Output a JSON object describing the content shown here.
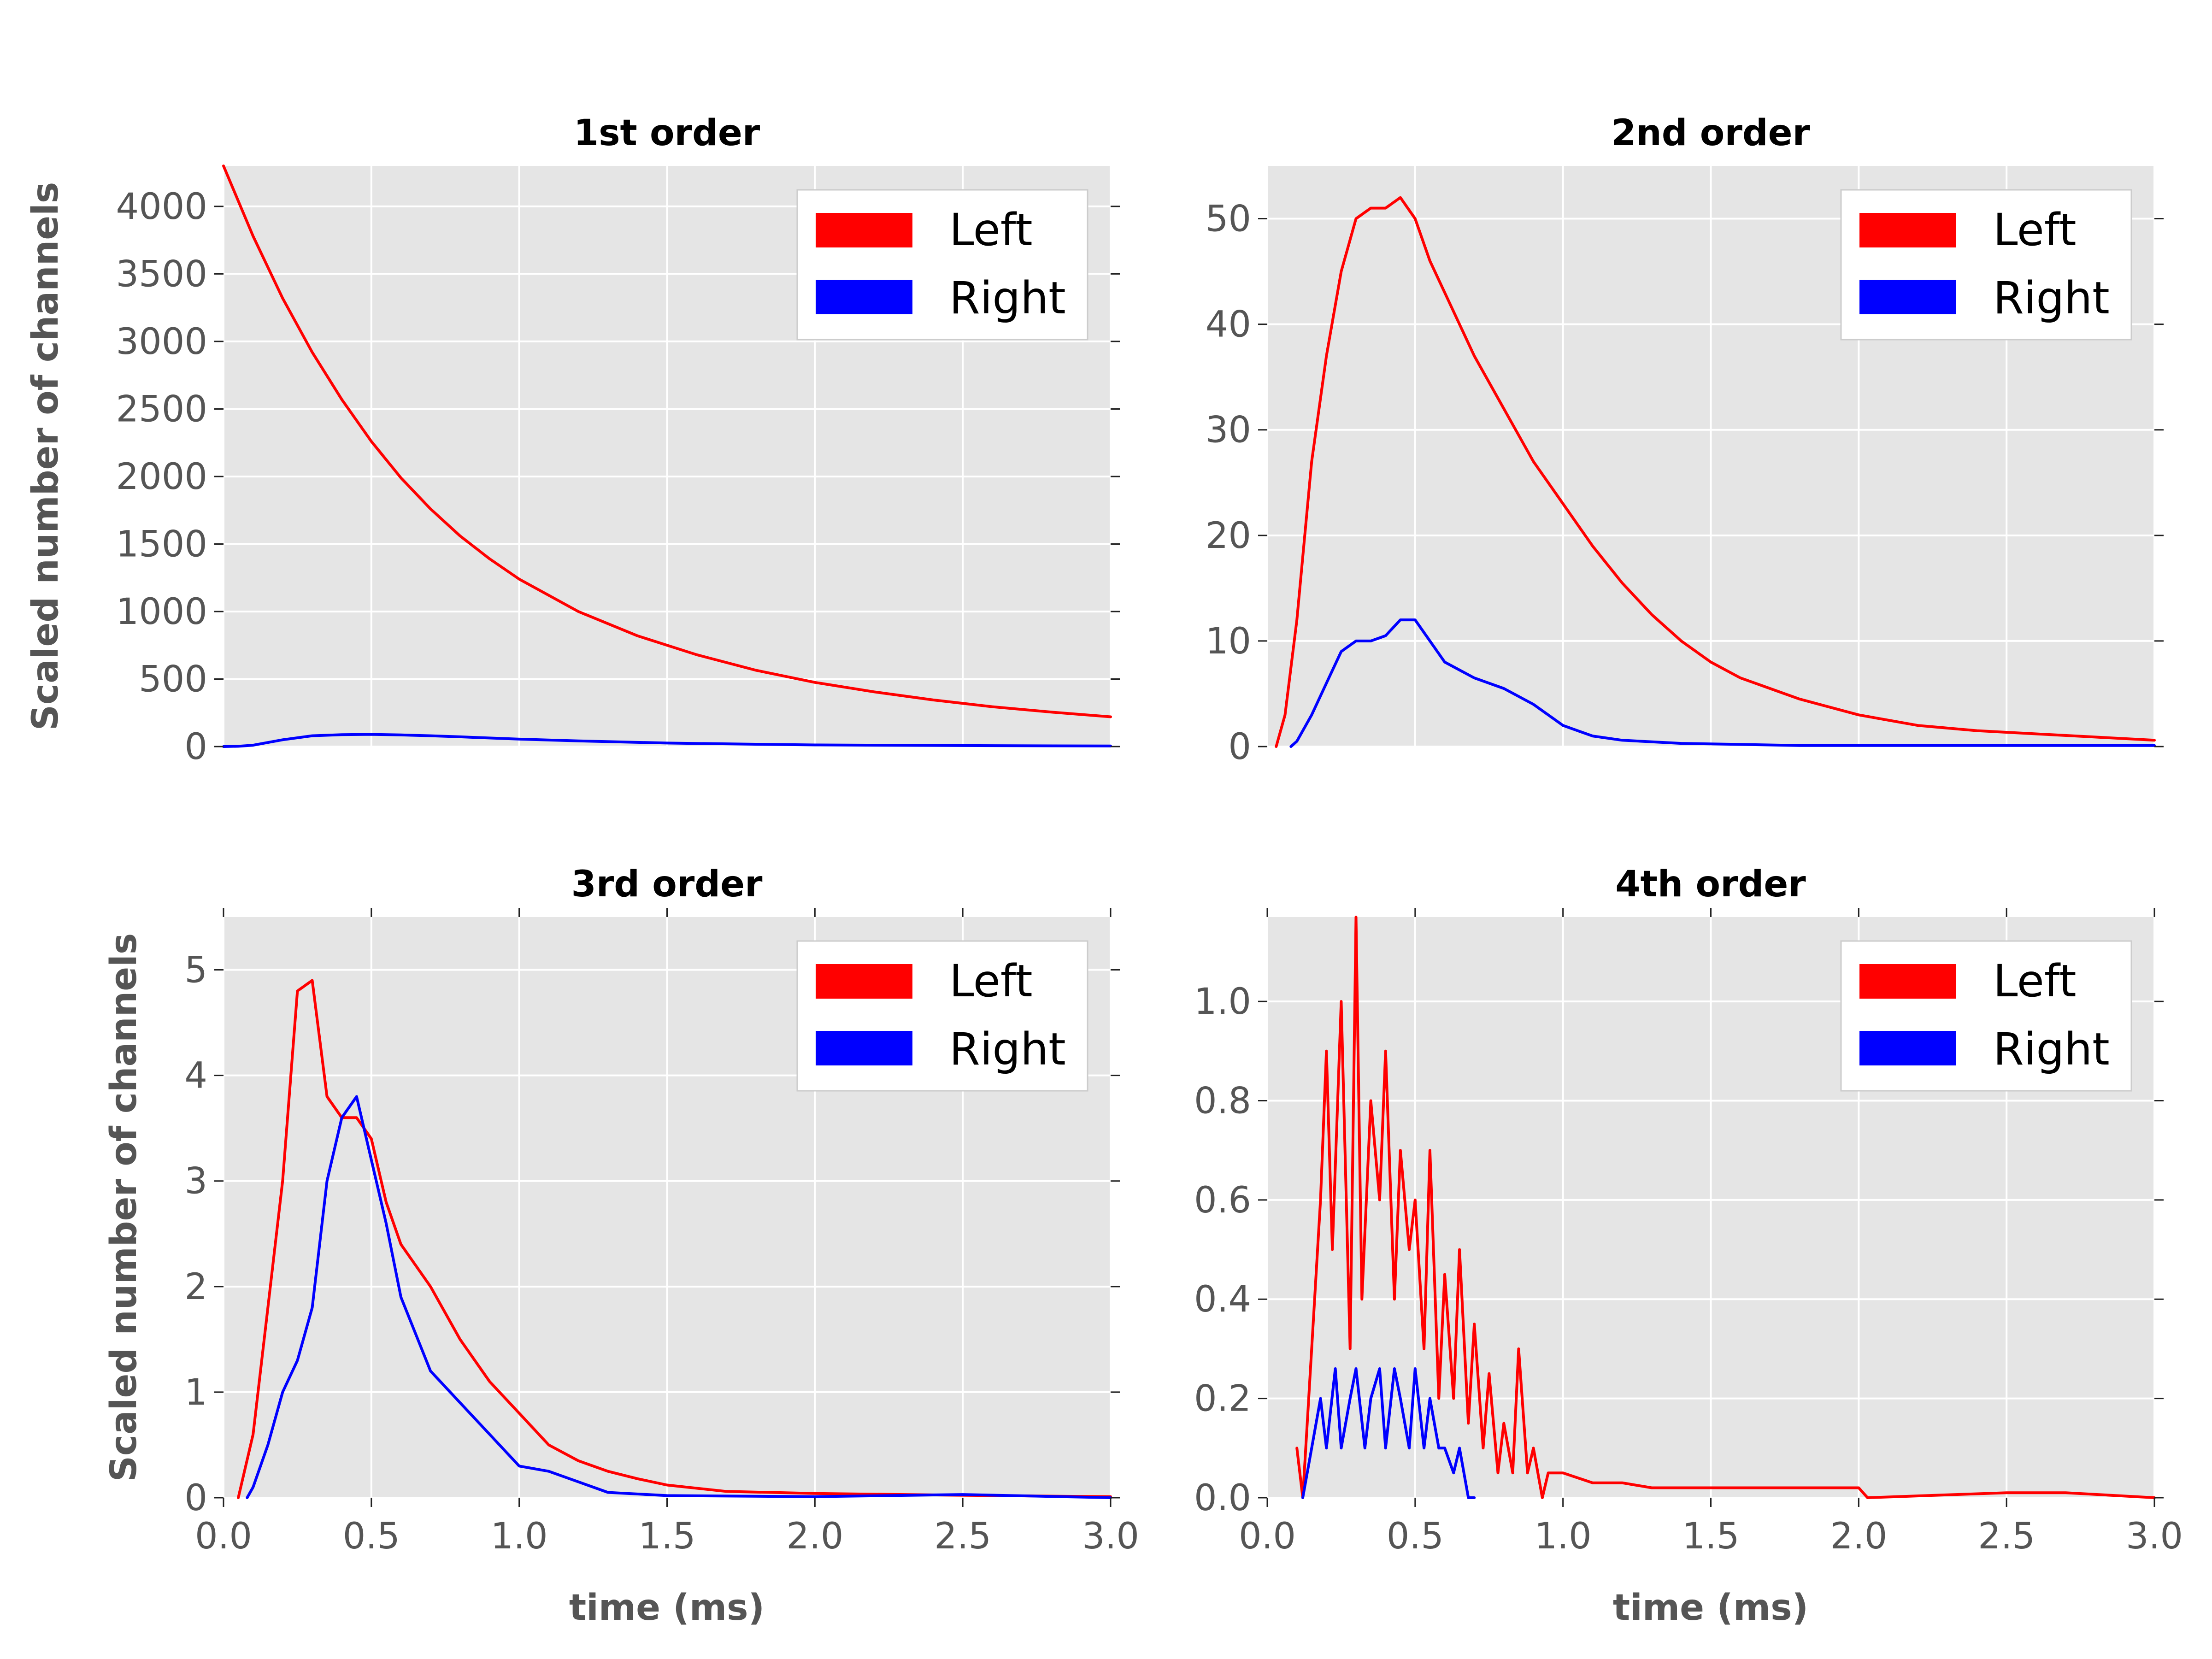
{
  "colors": {
    "left": "#ff0000",
    "right": "#0000ff",
    "plot_bg": "#e5e5e5",
    "grid": "#ffffff",
    "tick_text": "#555555"
  },
  "labels": {
    "ylabel": "Scaled number of channels",
    "xlabel": "time (ms)"
  },
  "chart_data": [
    {
      "type": "line",
      "title": "1st order",
      "xlim": [
        0.0,
        3.0
      ],
      "ylim": [
        0,
        4300
      ],
      "yticks": [
        "0",
        "500",
        "1000",
        "1500",
        "2000",
        "2500",
        "3000",
        "3500",
        "4000"
      ],
      "xticks": [],
      "ylabel": "Scaled number of channels",
      "xlabel": "",
      "legend": {
        "position": "top-right",
        "entries": [
          "Left",
          "Right"
        ]
      },
      "series": [
        {
          "name": "Left",
          "color": "#ff0000",
          "x": [
            0.0,
            0.1,
            0.2,
            0.3,
            0.4,
            0.5,
            0.6,
            0.7,
            0.8,
            0.9,
            1.0,
            1.2,
            1.4,
            1.6,
            1.8,
            2.0,
            2.2,
            2.4,
            2.6,
            2.8,
            3.0
          ],
          "y": [
            4300,
            3780,
            3320,
            2920,
            2570,
            2260,
            1990,
            1760,
            1560,
            1390,
            1240,
            1000,
            820,
            680,
            565,
            475,
            405,
            345,
            295,
            255,
            220
          ]
        },
        {
          "name": "Right",
          "color": "#0000ff",
          "x": [
            0.0,
            0.05,
            0.1,
            0.2,
            0.3,
            0.4,
            0.5,
            0.6,
            0.7,
            0.8,
            1.0,
            1.2,
            1.5,
            1.8,
            2.0,
            2.5,
            3.0
          ],
          "y": [
            0,
            2,
            10,
            50,
            80,
            88,
            90,
            86,
            80,
            72,
            55,
            42,
            26,
            17,
            12,
            7,
            4
          ]
        }
      ]
    },
    {
      "type": "line",
      "title": "2nd order",
      "xlim": [
        0.0,
        3.0
      ],
      "ylim": [
        0,
        55
      ],
      "yticks": [
        "0",
        "10",
        "20",
        "30",
        "40",
        "50"
      ],
      "xticks": [],
      "ylabel": "",
      "xlabel": "",
      "legend": {
        "position": "top-right",
        "entries": [
          "Left",
          "Right"
        ]
      },
      "series": [
        {
          "name": "Left",
          "color": "#ff0000",
          "x": [
            0.03,
            0.06,
            0.1,
            0.15,
            0.2,
            0.25,
            0.3,
            0.35,
            0.4,
            0.45,
            0.5,
            0.55,
            0.6,
            0.65,
            0.7,
            0.8,
            0.9,
            1.0,
            1.1,
            1.2,
            1.3,
            1.4,
            1.5,
            1.6,
            1.7,
            1.8,
            2.0,
            2.2,
            2.4,
            2.6,
            2.8,
            3.0
          ],
          "y": [
            0,
            3,
            12,
            27,
            37,
            45,
            50,
            51,
            51,
            52,
            50,
            46,
            43,
            40,
            37,
            32,
            27,
            23,
            19,
            15.5,
            12.5,
            10,
            8,
            6.5,
            5.5,
            4.5,
            3,
            2,
            1.5,
            1.2,
            0.9,
            0.6
          ]
        },
        {
          "name": "Right",
          "color": "#0000ff",
          "x": [
            0.08,
            0.1,
            0.15,
            0.2,
            0.25,
            0.3,
            0.35,
            0.4,
            0.45,
            0.5,
            0.55,
            0.6,
            0.7,
            0.8,
            0.9,
            1.0,
            1.1,
            1.2,
            1.4,
            1.6,
            1.8,
            2.0,
            2.2,
            2.4,
            2.6,
            2.8,
            3.0
          ],
          "y": [
            0,
            0.5,
            3,
            6,
            9,
            10,
            10,
            10.5,
            12,
            12,
            10,
            8,
            6.5,
            5.5,
            4,
            2,
            1,
            0.6,
            0.3,
            0.2,
            0.1,
            0.1,
            0.1,
            0.1,
            0.1,
            0.1,
            0.1
          ]
        }
      ]
    },
    {
      "type": "line",
      "title": "3rd order",
      "xlim": [
        0.0,
        3.0
      ],
      "ylim": [
        0,
        5.5
      ],
      "yticks": [
        "0",
        "1",
        "2",
        "3",
        "4",
        "5"
      ],
      "xticks": [
        "0.0",
        "0.5",
        "1.0",
        "1.5",
        "2.0",
        "2.5",
        "3.0"
      ],
      "ylabel": "Scaled number of channels",
      "xlabel": "time (ms)",
      "legend": {
        "position": "top-right",
        "entries": [
          "Left",
          "Right"
        ]
      },
      "series": [
        {
          "name": "Left",
          "color": "#ff0000",
          "x": [
            0.05,
            0.1,
            0.15,
            0.2,
            0.25,
            0.3,
            0.35,
            0.4,
            0.45,
            0.5,
            0.55,
            0.6,
            0.7,
            0.8,
            0.9,
            1.0,
            1.1,
            1.2,
            1.3,
            1.4,
            1.5,
            1.7,
            2.0,
            2.3,
            2.6,
            3.0
          ],
          "y": [
            0,
            0.6,
            1.8,
            3.0,
            4.8,
            4.9,
            3.8,
            3.6,
            3.6,
            3.4,
            2.8,
            2.4,
            2.0,
            1.5,
            1.1,
            0.8,
            0.5,
            0.35,
            0.25,
            0.18,
            0.12,
            0.06,
            0.04,
            0.03,
            0.02,
            0.01
          ]
        },
        {
          "name": "Right",
          "color": "#0000ff",
          "x": [
            0.08,
            0.1,
            0.15,
            0.2,
            0.25,
            0.3,
            0.35,
            0.4,
            0.45,
            0.5,
            0.55,
            0.6,
            0.7,
            0.8,
            0.9,
            1.0,
            1.1,
            1.2,
            1.3,
            1.5,
            2.0,
            2.5,
            3.0
          ],
          "y": [
            0,
            0.1,
            0.5,
            1.0,
            1.3,
            1.8,
            3.0,
            3.6,
            3.8,
            3.2,
            2.6,
            1.9,
            1.2,
            0.9,
            0.6,
            0.3,
            0.25,
            0.15,
            0.05,
            0.02,
            0.01,
            0.03,
            0.0
          ]
        }
      ]
    },
    {
      "type": "line",
      "title": "4th order",
      "xlim": [
        0.0,
        3.0
      ],
      "ylim": [
        0,
        1.17
      ],
      "yticks": [
        "0.0",
        "0.2",
        "0.4",
        "0.6",
        "0.8",
        "1.0"
      ],
      "xticks": [
        "0.0",
        "0.5",
        "1.0",
        "1.5",
        "2.0",
        "2.5",
        "3.0"
      ],
      "ylabel": "",
      "xlabel": "time (ms)",
      "legend": {
        "position": "top-right",
        "entries": [
          "Left",
          "Right"
        ]
      },
      "series": [
        {
          "name": "Left",
          "color": "#ff0000",
          "x": [
            0.1,
            0.12,
            0.15,
            0.18,
            0.2,
            0.22,
            0.25,
            0.28,
            0.3,
            0.32,
            0.35,
            0.38,
            0.4,
            0.43,
            0.45,
            0.48,
            0.5,
            0.53,
            0.55,
            0.58,
            0.6,
            0.63,
            0.65,
            0.68,
            0.7,
            0.73,
            0.75,
            0.78,
            0.8,
            0.83,
            0.85,
            0.88,
            0.9,
            0.93,
            0.95,
            1.0,
            1.1,
            1.2,
            1.3,
            1.4,
            2.0,
            2.03,
            2.5,
            2.6,
            2.7,
            3.0
          ],
          "y": [
            0.1,
            0.0,
            0.3,
            0.6,
            0.9,
            0.5,
            1.0,
            0.3,
            1.17,
            0.4,
            0.8,
            0.6,
            0.9,
            0.4,
            0.7,
            0.5,
            0.6,
            0.3,
            0.7,
            0.2,
            0.45,
            0.2,
            0.5,
            0.15,
            0.35,
            0.1,
            0.25,
            0.05,
            0.15,
            0.05,
            0.3,
            0.05,
            0.1,
            0.0,
            0.05,
            0.05,
            0.03,
            0.03,
            0.02,
            0.02,
            0.02,
            0.0,
            0.01,
            0.01,
            0.01,
            0.0
          ]
        },
        {
          "name": "Right",
          "color": "#0000ff",
          "x": [
            0.12,
            0.15,
            0.18,
            0.2,
            0.23,
            0.25,
            0.28,
            0.3,
            0.33,
            0.35,
            0.38,
            0.4,
            0.43,
            0.45,
            0.48,
            0.5,
            0.53,
            0.55,
            0.58,
            0.6,
            0.63,
            0.65,
            0.68,
            0.7
          ],
          "y": [
            0.0,
            0.1,
            0.2,
            0.1,
            0.26,
            0.1,
            0.2,
            0.26,
            0.1,
            0.2,
            0.26,
            0.1,
            0.26,
            0.2,
            0.1,
            0.26,
            0.1,
            0.2,
            0.1,
            0.1,
            0.05,
            0.1,
            0.0,
            0.0
          ]
        }
      ]
    }
  ]
}
